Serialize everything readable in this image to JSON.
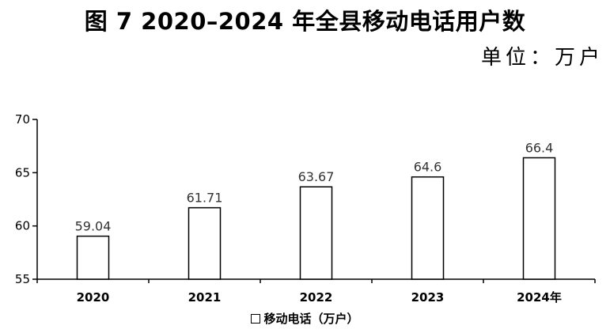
{
  "title": "图 7 2020–2024 年全县移动电话用户数",
  "unit_label": "单位：万户",
  "legend_label": "移动电话（万户）",
  "colors": {
    "bar_fill": "#ffffff",
    "bar_stroke": "#000000",
    "axis": "#000000",
    "data_label": "#333333"
  },
  "chart_data": {
    "type": "bar",
    "title": "图 7 2020–2024 年全县移动电话用户数",
    "categories": [
      "2020",
      "2021",
      "2022",
      "2023",
      "2024年"
    ],
    "series": [
      {
        "name": "移动电话（万户）",
        "values": [
          59.04,
          61.71,
          63.67,
          64.6,
          66.4
        ],
        "labels": [
          "59.04",
          "61.71",
          "63.67",
          "64.6",
          "66.4"
        ]
      }
    ],
    "ylim": [
      55,
      70
    ],
    "yticks": [
      "55",
      "60",
      "65",
      "70"
    ],
    "xlabel": "",
    "ylabel": "",
    "grid": false,
    "legend": "bottom"
  }
}
